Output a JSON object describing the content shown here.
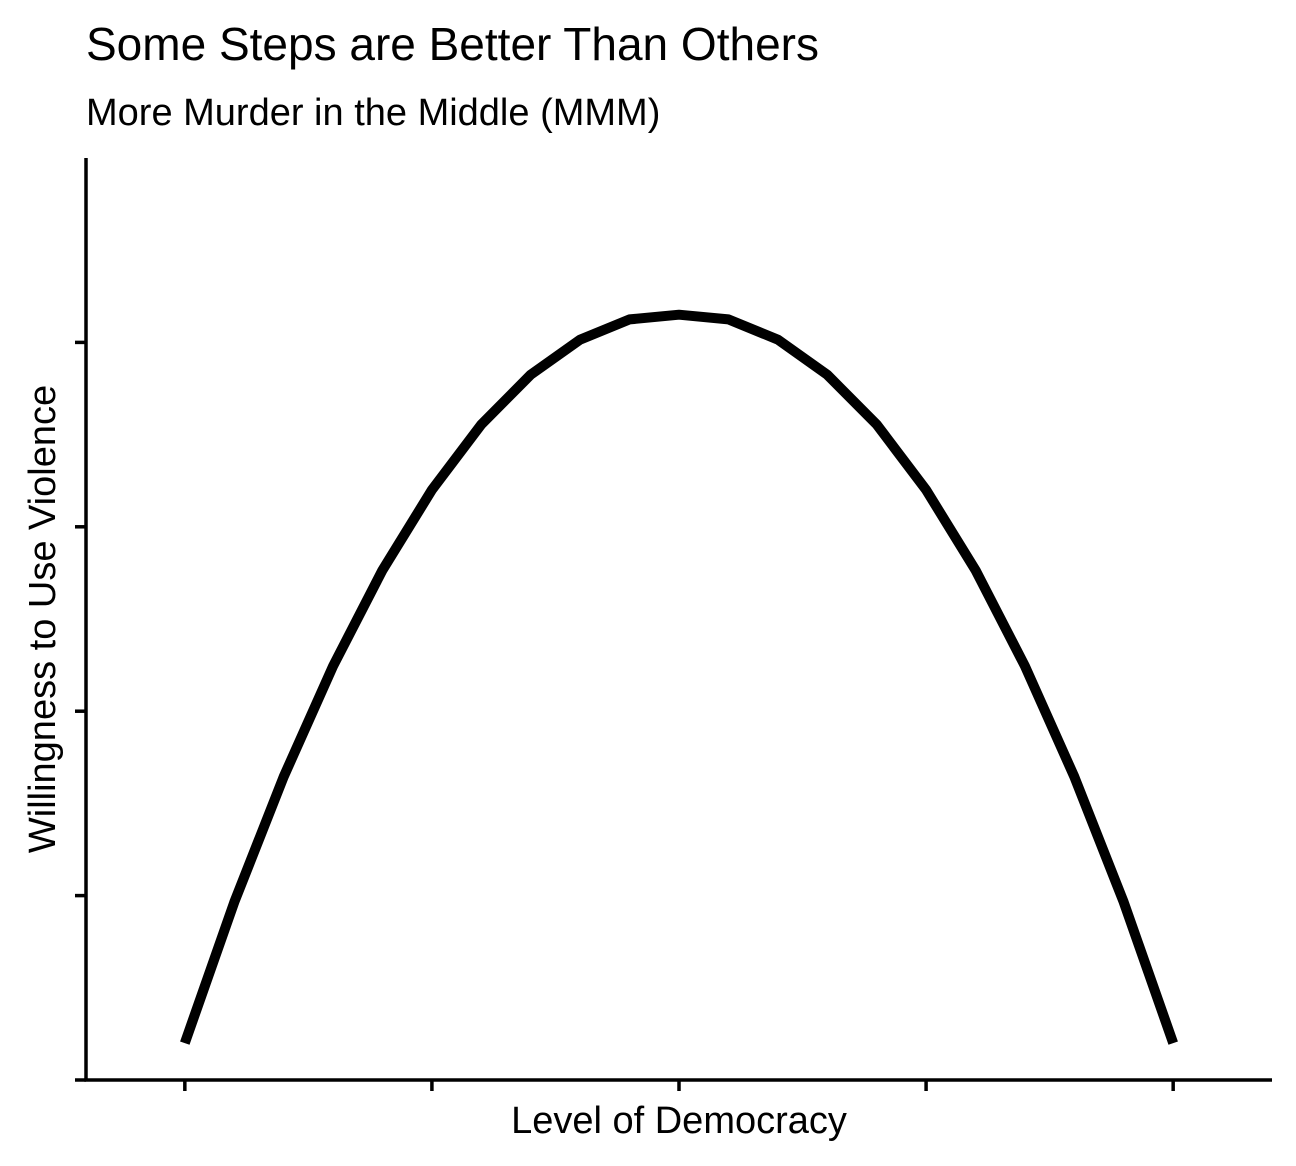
{
  "chart_data": {
    "type": "line",
    "title": "Some Steps are Better Than Others",
    "subtitle": "More Murder in the Middle (MMM)",
    "xlabel": "Level of Democracy",
    "ylabel": "Willingness to Use Violence",
    "x_tick_labels": [],
    "y_tick_labels": [],
    "xlim": [
      -0.1,
      1.1
    ],
    "ylim": [
      0,
      1.0
    ],
    "x_ticks": [
      0,
      0.25,
      0.5,
      0.75,
      1.0
    ],
    "y_ticks": [
      0,
      0.2,
      0.4,
      0.6,
      0.8
    ],
    "grid": false,
    "legend": "none",
    "line_color": "#000000",
    "series": [
      {
        "x": [
          0,
          0.05,
          0.1,
          0.15,
          0.2,
          0.25,
          0.3,
          0.35,
          0.4,
          0.45,
          0.5,
          0.55,
          0.6,
          0.65,
          0.7,
          0.75,
          0.8,
          0.85,
          0.9,
          0.95,
          1.0
        ],
        "values": [
          0.04,
          0.193,
          0.329,
          0.449,
          0.553,
          0.64,
          0.711,
          0.765,
          0.803,
          0.825,
          0.83,
          0.825,
          0.803,
          0.765,
          0.711,
          0.64,
          0.553,
          0.449,
          0.329,
          0.193,
          0.04
        ]
      }
    ]
  }
}
